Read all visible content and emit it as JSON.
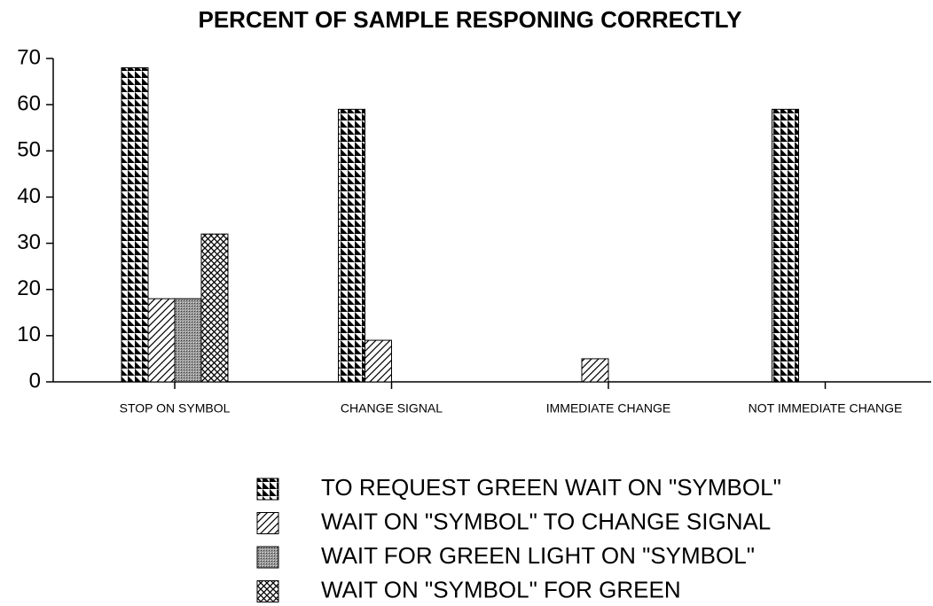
{
  "chart_data": {
    "type": "bar",
    "title": "PERCENT OF SAMPLE RESPONING CORRECTLY",
    "categories": [
      "STOP ON SYMBOL",
      "CHANGE SIGNAL",
      "IMMEDIATE CHANGE",
      "NOT IMMEDIATE CHANGE"
    ],
    "series": [
      {
        "name": "TO REQUEST GREEN WAIT ON \"SYMBOL\"",
        "pattern": "triangles",
        "values": [
          68,
          59,
          0,
          59
        ]
      },
      {
        "name": "WAIT ON \"SYMBOL\" TO CHANGE SIGNAL",
        "pattern": "diagonal",
        "values": [
          18,
          9,
          5,
          0
        ]
      },
      {
        "name": "WAIT FOR GREEN LIGHT ON \"SYMBOL\"",
        "pattern": "dots",
        "values": [
          18,
          0,
          0,
          0
        ]
      },
      {
        "name": "WAIT ON \"SYMBOL\" FOR GREEN",
        "pattern": "crosshatch",
        "values": [
          32,
          0,
          0,
          0
        ]
      }
    ],
    "ylim": [
      0,
      70
    ],
    "yticks": [
      0,
      10,
      20,
      30,
      40,
      50,
      60,
      70
    ],
    "legend": "bottom"
  }
}
